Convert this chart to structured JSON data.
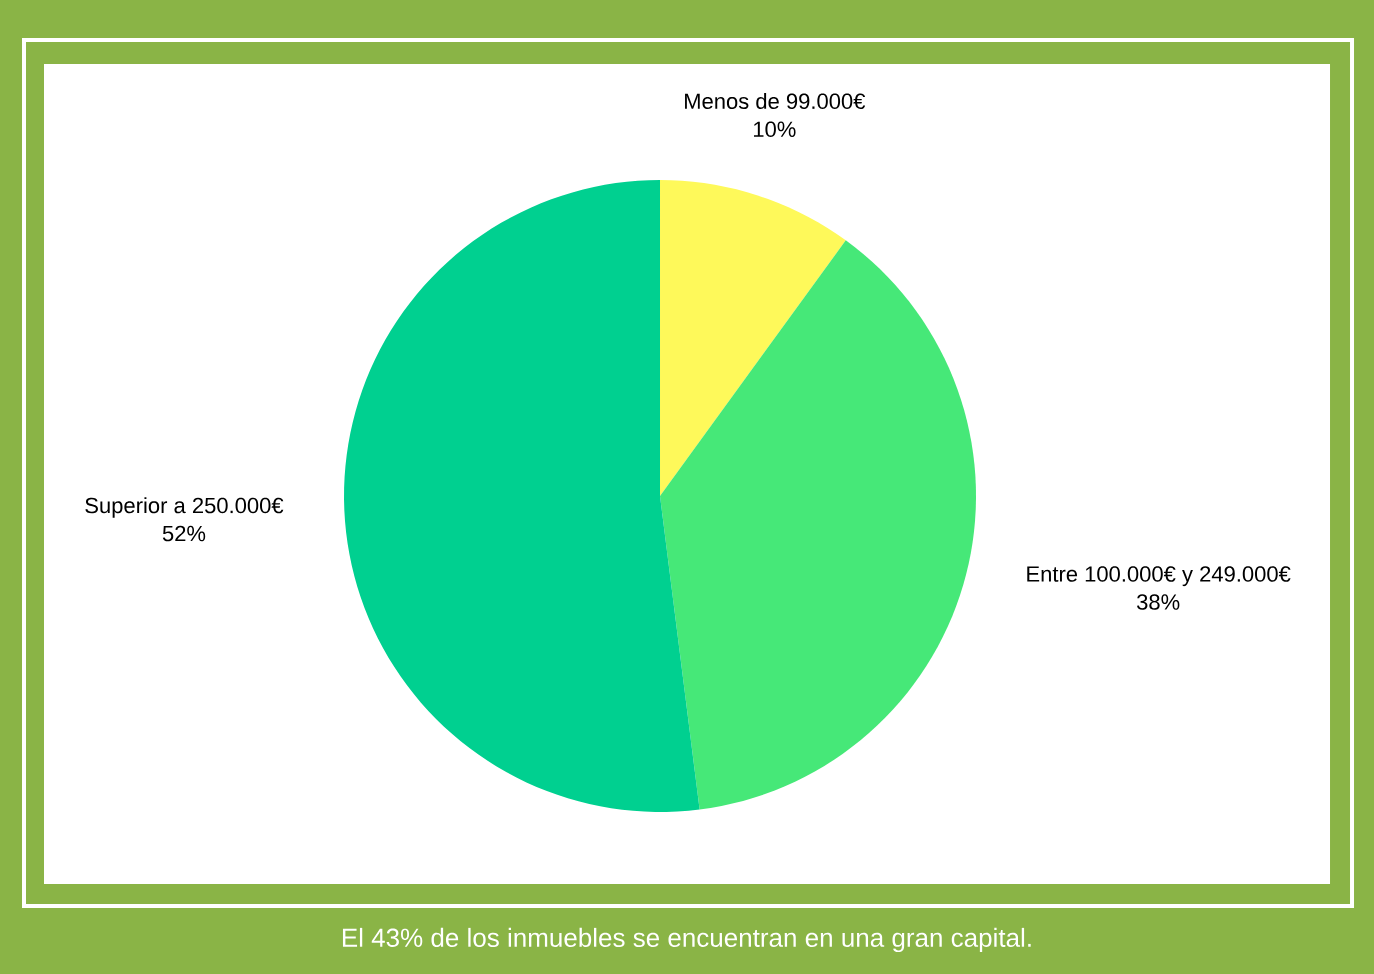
{
  "chart_data": {
    "type": "pie",
    "categories": [
      "Menos de 99.000€",
      "Entre 100.000€ y 249.000€",
      "Superior a 250.000€"
    ],
    "values": [
      10,
      38,
      52
    ],
    "colors": [
      "#fef95a",
      "#46e878",
      "#00d090"
    ],
    "value_labels": [
      "10%",
      "38%",
      "52%"
    ],
    "annotations": [
      "El 43% de los inmuebles se encuentran en una gran capital."
    ]
  }
}
